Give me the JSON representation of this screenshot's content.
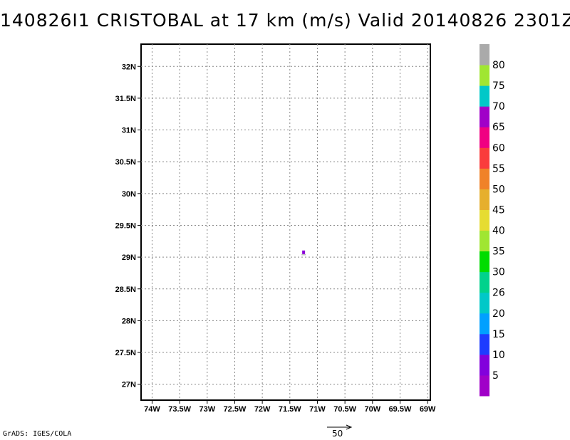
{
  "title": "140826I1 CRISTOBAL at 17 km (m/s) Valid 20140826 2301Z",
  "map": {
    "lon_range": [
      -74.2,
      -68.95
    ],
    "lat_range": [
      26.75,
      32.35
    ],
    "grid": "dotted",
    "x_ticks": [
      {
        "value": -74,
        "label": "74W"
      },
      {
        "value": -73.5,
        "label": "73.5W"
      },
      {
        "value": -73,
        "label": "73W"
      },
      {
        "value": -72.5,
        "label": "72.5W"
      },
      {
        "value": -72,
        "label": "72W"
      },
      {
        "value": -71.5,
        "label": "71.5W"
      },
      {
        "value": -71,
        "label": "71W"
      },
      {
        "value": -70.5,
        "label": "70.5W"
      },
      {
        "value": -70,
        "label": "70W"
      },
      {
        "value": -69.5,
        "label": "69.5W"
      },
      {
        "value": -69,
        "label": "69W"
      }
    ],
    "y_ticks": [
      {
        "value": 27,
        "label": "27N"
      },
      {
        "value": 27.5,
        "label": "27.5N"
      },
      {
        "value": 28,
        "label": "28N"
      },
      {
        "value": 28.5,
        "label": "28.5N"
      },
      {
        "value": 29,
        "label": "29N"
      },
      {
        "value": 29.5,
        "label": "29.5N"
      },
      {
        "value": 30,
        "label": "30N"
      },
      {
        "value": 30.5,
        "label": "30.5N"
      },
      {
        "value": 31,
        "label": "31N"
      },
      {
        "value": 31.5,
        "label": "31.5N"
      },
      {
        "value": 32,
        "label": "32N"
      }
    ],
    "wind_points": [
      {
        "lon": -71.25,
        "lat": 29.07,
        "value": 7,
        "color": "#8a00d8"
      }
    ]
  },
  "colorbar": {
    "colors": [
      "#a000c8",
      "#8200dc",
      "#1e3cff",
      "#00a0ff",
      "#00c8c8",
      "#00d28c",
      "#00dc00",
      "#a0e632",
      "#e6dc32",
      "#e6af2d",
      "#f08228",
      "#fa3c3c",
      "#f00082",
      "#a000c8",
      "#00c8c8",
      "#a0e632",
      "#aaaaaa"
    ],
    "labels": [
      "5",
      "10",
      "15",
      "20",
      "26",
      "30",
      "35",
      "40",
      "45",
      "50",
      "55",
      "60",
      "65",
      "70",
      "75",
      "80"
    ]
  },
  "credit": "GrADS: IGES/COLA",
  "reference_vector": {
    "label": "50"
  }
}
